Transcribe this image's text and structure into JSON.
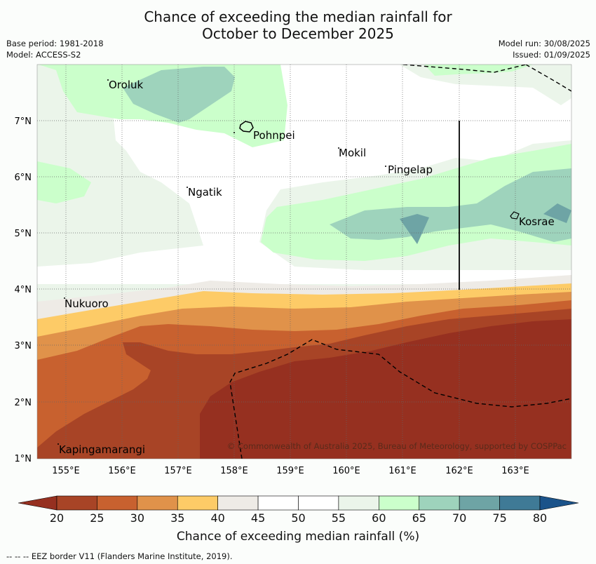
{
  "title_line1": "Chance of exceeding the median rainfall for",
  "title_line2": "October to December 2025",
  "meta_left": [
    "Base period: 1981-2018",
    "Model: ACCESS-S2"
  ],
  "meta_right": [
    "Model run: 30/08/2025",
    "Issued: 01/09/2025"
  ],
  "map": {
    "lon_ticks": [
      "155°E",
      "156°E",
      "157°E",
      "158°E",
      "159°E",
      "160°E",
      "161°E",
      "162°E",
      "163°E"
    ],
    "lat_ticks": [
      "7°N",
      "6°N",
      "5°N",
      "4°N",
      "3°N",
      "2°N",
      "1°N"
    ],
    "places": [
      "Oroluk",
      "Pohnpei",
      "Mokil",
      "Pingelap",
      "Ngatik",
      "Kosrae",
      "Nukuoro",
      "Kapingamarangi"
    ],
    "copyright": "© Commonwealth of Australia 2025, Bureau of Meteorology, supported by COSPPac"
  },
  "colorbar": {
    "ticks": [
      "20",
      "25",
      "30",
      "35",
      "40",
      "45",
      "50",
      "55",
      "60",
      "65",
      "70",
      "75",
      "80"
    ],
    "colors": [
      "#a84426",
      "#c8612f",
      "#e0924a",
      "#fdcb67",
      "#eeebe6",
      "#ffffff",
      "#ffffff",
      "#ebf5ea",
      "#cbffcb",
      "#9ed3bc",
      "#6ea4a5",
      "#3f7a96"
    ],
    "under_color": "#963020",
    "over_color": "#1b538a",
    "label": "Chance of exceeding median rainfall (%)"
  },
  "footer": "--  --  -- EEZ border V11 (Flanders Marine Institute, 2019)."
}
